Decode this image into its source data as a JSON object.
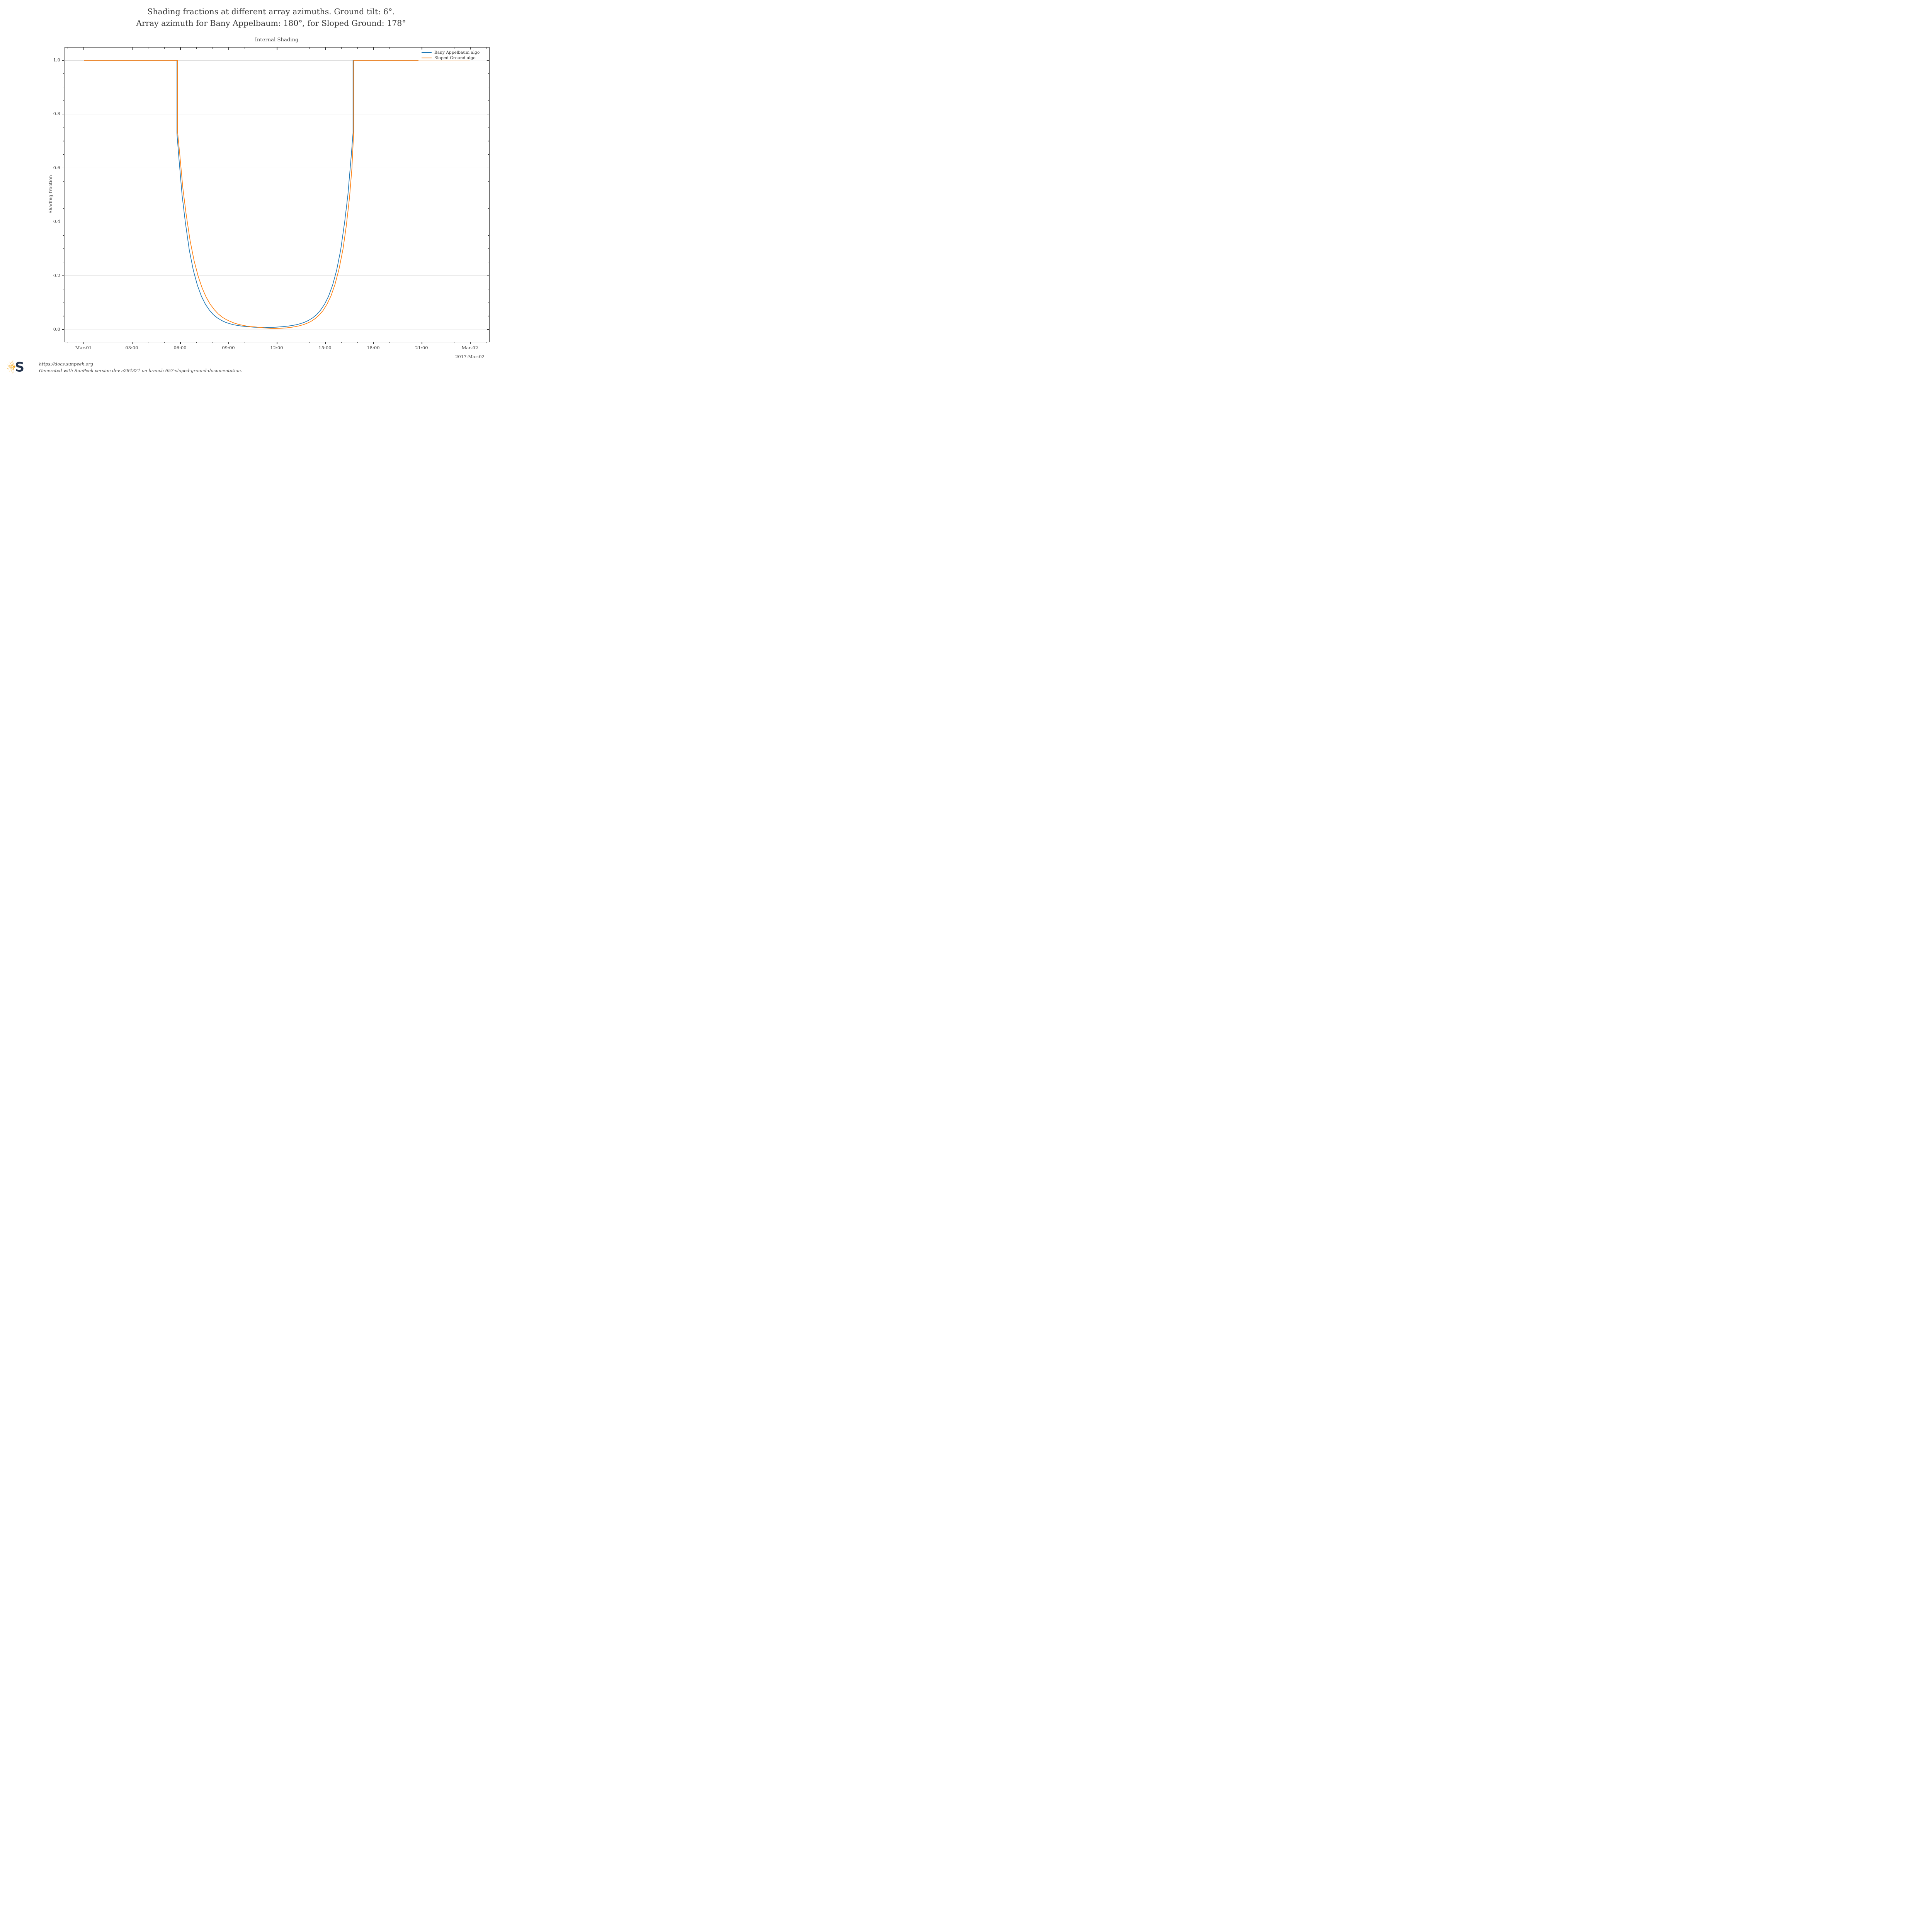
{
  "figure": {
    "suptitle_line1": "Shading fractions at different array azimuths. Ground tilt: 6°.",
    "suptitle_line2": "Array azimuth for Bany Appelbaum: 180°, for Sloped Ground: 178°",
    "axes_title": "Internal Shading",
    "y_axis_label": "Shading fraction"
  },
  "footer": {
    "url": "https://docs.sunpeek.org",
    "generated": "Generated with SunPeek version dev a284321 on branch 657-sloped-ground-documentation.",
    "logo_letter": "S",
    "logo_navy": "#24344E",
    "logo_orange": "#F5A81C"
  },
  "chart_data": {
    "type": "line",
    "title": "Internal Shading",
    "xlabel": "",
    "ylabel": "Shading fraction",
    "grid": "horizontal-major-only",
    "legend_position": "upper-right",
    "style": {
      "background": "#ffffff",
      "text_color": "#3a3a3a",
      "spine_color": "#333333",
      "grid_color": "#dcdcdc"
    },
    "x_axis": {
      "unit": "hours from 2017-Mar-01 00:00",
      "xlim_hours": [
        -1.176,
        25.176
      ],
      "major_tick_hours": [
        0,
        3,
        6,
        9,
        12,
        15,
        18,
        21,
        24
      ],
      "major_tick_labels": [
        "Mar-01",
        "03:00",
        "06:00",
        "09:00",
        "12:00",
        "15:00",
        "18:00",
        "21:00",
        "Mar-02"
      ],
      "minor_tick_step_hours": 1,
      "offset_label": "2017-Mar-02"
    },
    "y_axis": {
      "ylim": [
        -0.047,
        1.047
      ],
      "major_ticks": [
        0.0,
        0.2,
        0.4,
        0.6,
        0.8,
        1.0
      ],
      "major_tick_labels": [
        "0.0",
        "0.2",
        "0.4",
        "0.6",
        "0.8",
        "1.0"
      ],
      "minor_ticks": [
        0.05,
        0.1,
        0.15,
        0.25,
        0.3,
        0.35,
        0.45,
        0.5,
        0.55,
        0.65,
        0.7,
        0.75,
        0.85,
        0.9,
        0.95
      ]
    },
    "series": [
      {
        "name": "Bany Appelbaum algo",
        "color": "#1f77b4",
        "x": [
          0,
          5.78,
          5.78,
          5.9,
          6.1,
          6.3,
          6.55,
          6.8,
          7.05,
          7.3,
          7.55,
          7.8,
          8.05,
          8.3,
          8.55,
          8.8,
          9.05,
          9.3,
          9.55,
          9.8,
          10.05,
          10.3,
          10.55,
          10.8,
          11.05,
          11.25,
          11.45,
          11.7,
          11.95,
          12.2,
          12.45,
          12.7,
          12.95,
          13.2,
          13.45,
          13.7,
          13.95,
          14.2,
          14.45,
          14.7,
          14.95,
          15.2,
          15.45,
          15.7,
          15.95,
          16.2,
          16.4,
          16.6,
          16.72,
          16.72,
          24
        ],
        "y": [
          1,
          1,
          0.73,
          0.64,
          0.5,
          0.4,
          0.295,
          0.22,
          0.165,
          0.124,
          0.094,
          0.072,
          0.055,
          0.043,
          0.034,
          0.027,
          0.022,
          0.018,
          0.0152,
          0.0131,
          0.0114,
          0.0101,
          0.009,
          0.0082,
          0.0075,
          0.0072,
          0.0075,
          0.0082,
          0.009,
          0.0101,
          0.0114,
          0.0131,
          0.0152,
          0.018,
          0.022,
          0.027,
          0.034,
          0.043,
          0.055,
          0.072,
          0.094,
          0.124,
          0.165,
          0.22,
          0.295,
          0.4,
          0.5,
          0.64,
          0.73,
          1,
          1
        ]
      },
      {
        "name": "Sloped Ground algo",
        "color": "#ff7f0e",
        "x": [
          0,
          5.82,
          5.82,
          5.95,
          6.15,
          6.35,
          6.6,
          6.85,
          7.1,
          7.35,
          7.6,
          7.85,
          8.1,
          8.35,
          8.6,
          8.85,
          9.1,
          9.35,
          9.6,
          9.85,
          10.1,
          10.35,
          10.6,
          10.85,
          11.1,
          11.35,
          11.6,
          11.85,
          12.1,
          12.35,
          12.6,
          12.85,
          13.1,
          13.35,
          13.6,
          13.85,
          14.1,
          14.35,
          14.6,
          14.85,
          15.1,
          15.35,
          15.6,
          15.85,
          16.1,
          16.3,
          16.5,
          16.65,
          16.76,
          16.76,
          24
        ],
        "y": [
          1,
          1,
          0.735,
          0.655,
          0.525,
          0.43,
          0.33,
          0.255,
          0.198,
          0.154,
          0.12,
          0.094,
          0.074,
          0.058,
          0.046,
          0.037,
          0.03,
          0.024,
          0.0195,
          0.016,
          0.0132,
          0.011,
          0.01,
          0.0085,
          0.007,
          0.0055,
          0.0045,
          0.004,
          0.0044,
          0.0052,
          0.0065,
          0.0082,
          0.0105,
          0.0135,
          0.0175,
          0.023,
          0.03,
          0.04,
          0.053,
          0.07,
          0.094,
          0.125,
          0.168,
          0.225,
          0.3,
          0.385,
          0.49,
          0.6,
          0.735,
          1,
          1
        ]
      }
    ]
  }
}
